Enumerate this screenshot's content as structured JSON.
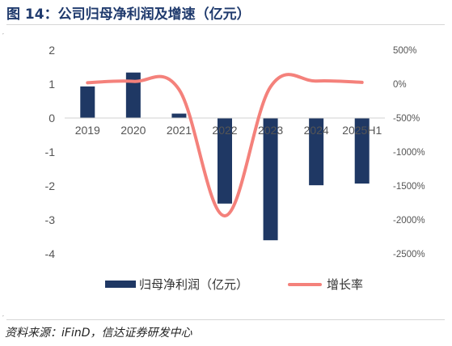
{
  "figure": {
    "title": "图 14：公司归母净利润及增速（亿元）",
    "source": "资料来源：iFinD，信达证券研发中心"
  },
  "chart_data": {
    "type": "bar",
    "categories": [
      "2019",
      "2020",
      "2021",
      "2022",
      "2023",
      "2024",
      "2025H1"
    ],
    "y_left": {
      "ticks": [
        "2",
        "1",
        "0",
        "-1",
        "-2",
        "-3",
        "-4"
      ],
      "ylim": [
        -4,
        2
      ]
    },
    "y_right": {
      "ticks": [
        "500%",
        "0%",
        "-500%",
        "-1000%",
        "-1500%",
        "-2000%",
        "-2500%"
      ],
      "ylim": [
        -2500,
        500
      ],
      "unit": "%"
    },
    "series": [
      {
        "name": "归母净利润（亿元）",
        "type": "bar",
        "axis": "left",
        "color": "#1f3864",
        "values": [
          0.93,
          1.34,
          0.13,
          -2.52,
          -3.6,
          -1.98,
          -1.93
        ]
      },
      {
        "name": "增长率",
        "type": "line",
        "axis": "right",
        "color": "#f4817b",
        "values": [
          20,
          40,
          -80,
          -1940,
          -40,
          45,
          25
        ]
      }
    ],
    "legend": "bottom-center",
    "grid": false
  }
}
